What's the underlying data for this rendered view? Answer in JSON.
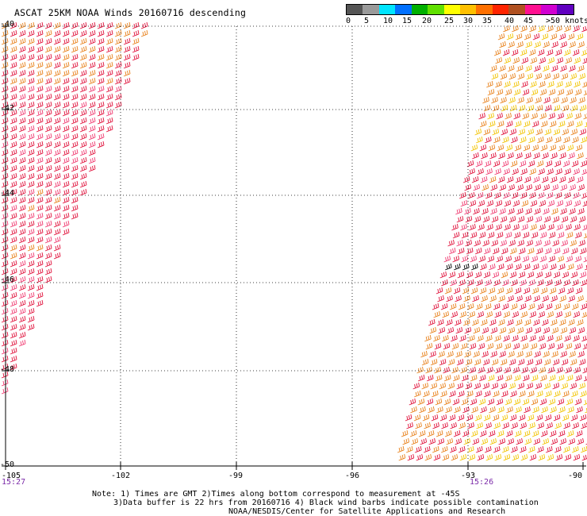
{
  "title": "ASCAT 25KM NOAA Winds 20160716 descending",
  "legend": {
    "colors": [
      "#555555",
      "#9a9a9a",
      "#00e5ff",
      "#0070ff",
      "#00b000",
      "#60e000",
      "#ffff00",
      "#ffc000",
      "#ff7000",
      "#ff2400",
      "#b05020",
      "#ff1090",
      "#d000d0",
      "#6000c0"
    ],
    "labels": [
      "0",
      "5",
      "10",
      "15",
      "20",
      "25",
      "30",
      "35",
      "40",
      "45",
      ">50 knots"
    ]
  },
  "map": {
    "lat_labels": [
      "-40",
      "-42",
      "-44",
      "-46",
      "-48",
      "-50"
    ],
    "lon_labels": [
      "-105",
      "-102",
      "-99",
      "-96",
      "-93",
      "-90"
    ],
    "swath_times": [
      "15:27",
      "15:26"
    ],
    "barb_colors": {
      "red": "#e0103a",
      "pink": "#f03a70",
      "orange": "#e8801a",
      "yellow": "#f2c400",
      "contaminated": "#000000"
    }
  },
  "notes": {
    "line1": "Note: 1) Times are GMT 2)Times along bottom correspond to measurement at -45S",
    "line2": "3)Data buffer is 22 hrs from 20160716 4) Black wind barbs indicate possible contamination",
    "line3": "NOAA/NESDIS/Center for Satellite Applications and Research"
  }
}
